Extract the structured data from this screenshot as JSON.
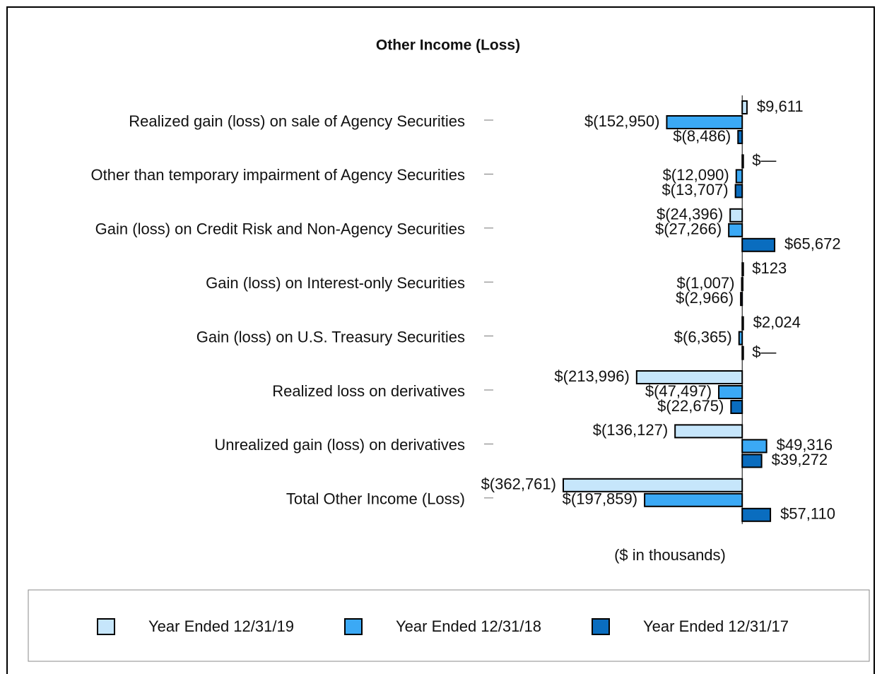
{
  "chart_data": {
    "type": "bar",
    "orientation": "horizontal",
    "title": "Other Income (Loss)",
    "x_label": "($ in thousands)",
    "categories": [
      "Realized gain (loss) on sale of Agency Securities",
      "Other than temporary impairment of Agency Securities",
      "Gain (loss) on Credit Risk and Non-Agency Securities",
      "Gain (loss) on Interest-only Securities",
      "Gain (loss) on U.S. Treasury Securities",
      "Realized loss on derivatives",
      "Unrealized gain (loss) on derivatives",
      "Total Other Income (Loss)"
    ],
    "series": [
      {
        "name": "Year Ended 12/31/19",
        "color": "#c6e6fb",
        "values": [
          9611,
          0,
          -24396,
          123,
          2024,
          -213996,
          -136127,
          -362761
        ],
        "value_labels": [
          "$9,611",
          "$—",
          "$(24,396)",
          "$123",
          "$2,024",
          "$(213,996)",
          "$(136,127)",
          "$(362,761)"
        ]
      },
      {
        "name": "Year Ended 12/31/18",
        "color": "#3ba9f5",
        "values": [
          -152950,
          -12090,
          -27266,
          -1007,
          -6365,
          -47497,
          49316,
          -197859
        ],
        "value_labels": [
          "$(152,950)",
          "$(12,090)",
          "$(27,266)",
          "$(1,007)",
          "$(6,365)",
          "$(47,497)",
          "$49,316",
          "$(197,859)"
        ]
      },
      {
        "name": "Year Ended 12/31/17",
        "color": "#0a6dbf",
        "values": [
          -8486,
          -13707,
          65672,
          -2966,
          0,
          -22675,
          39272,
          57110
        ],
        "value_labels": [
          "$(8,486)",
          "$(13,707)",
          "$65,672",
          "$(2,966)",
          "$—",
          "$(22,675)",
          "$39,272",
          "$57,110"
        ]
      }
    ],
    "xlim": [
      -400000,
      100000
    ],
    "legend": "bottom"
  }
}
